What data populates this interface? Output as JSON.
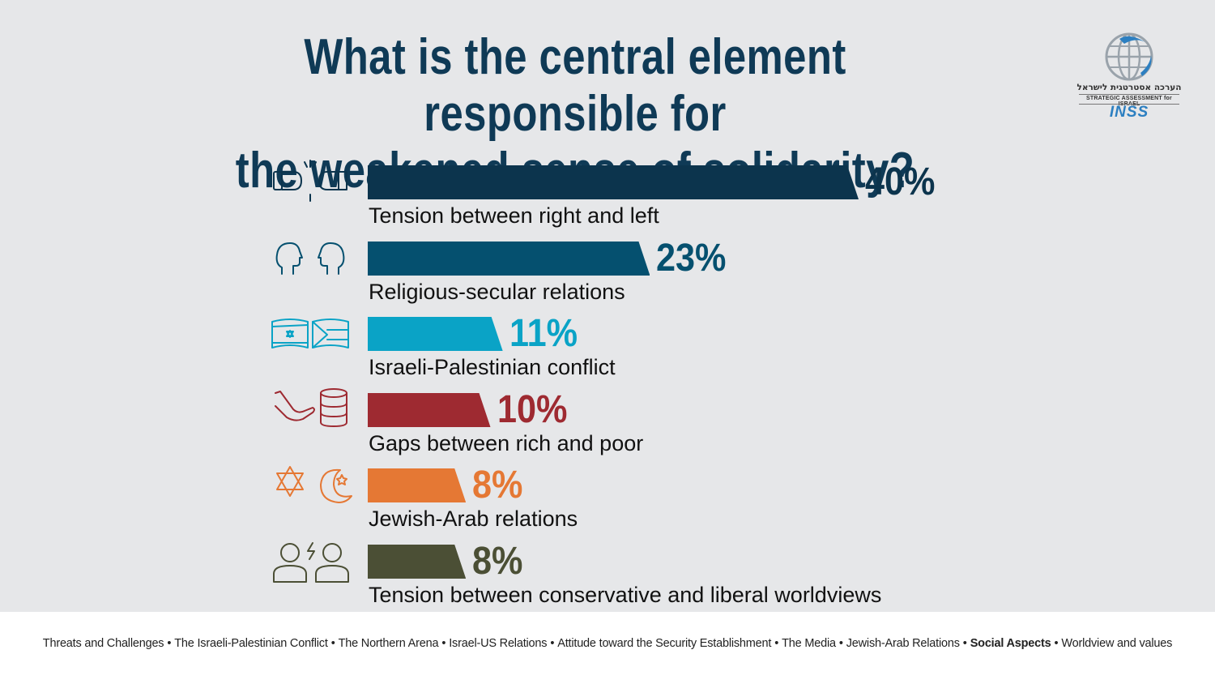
{
  "title_lines": [
    "What is the central element responsible for",
    "the weakened sense of solidarity?"
  ],
  "logo": {
    "hebrew": "הערכה אסטרטגית לישראל",
    "english": "STRATEGIC ASSESSMENT for ISRAEL",
    "brand": "INSS"
  },
  "chart_data": {
    "type": "bar",
    "orientation": "horizontal",
    "categories": [
      "Tension between right and left",
      "Religious-secular relations",
      "Israeli-Palestinian conflict",
      "Gaps between rich and poor",
      "Jewish-Arab relations",
      "Tension between conservative and liberal worldviews"
    ],
    "values": [
      40,
      23,
      11,
      10,
      8,
      8
    ],
    "value_labels": [
      "40%",
      "23%",
      "11%",
      "10%",
      "8%",
      "8%"
    ],
    "colors": [
      "#0c344d",
      "#05506f",
      "#0aa3c6",
      "#9e2a31",
      "#e57834",
      "#4b4f35"
    ],
    "icons": [
      "boxing-gloves-icon",
      "two-faces-icon",
      "flags-icon",
      "hand-coins-icon",
      "star-crescent-icon",
      "arguing-people-icon"
    ],
    "title": "What is the central element responsible for the weakened sense of solidarity?",
    "xlabel": "",
    "ylabel": "",
    "xlim": [
      0,
      40
    ]
  },
  "footer": {
    "items": [
      {
        "label": "Threats and Challenges",
        "active": false
      },
      {
        "label": "The Israeli-Palestinian Conflict",
        "active": false
      },
      {
        "label": "The Northern  Arena",
        "active": false
      },
      {
        "label": "Israel-US Relations",
        "active": false
      },
      {
        "label": "Attitude toward the Security Establishment",
        "active": false
      },
      {
        "label": "The Media",
        "active": false
      },
      {
        "label": "Jewish-Arab Relations",
        "active": false
      },
      {
        "label": "Social Aspects",
        "active": true
      },
      {
        "label": "Worldview and values",
        "active": false
      }
    ],
    "separator": "•"
  }
}
